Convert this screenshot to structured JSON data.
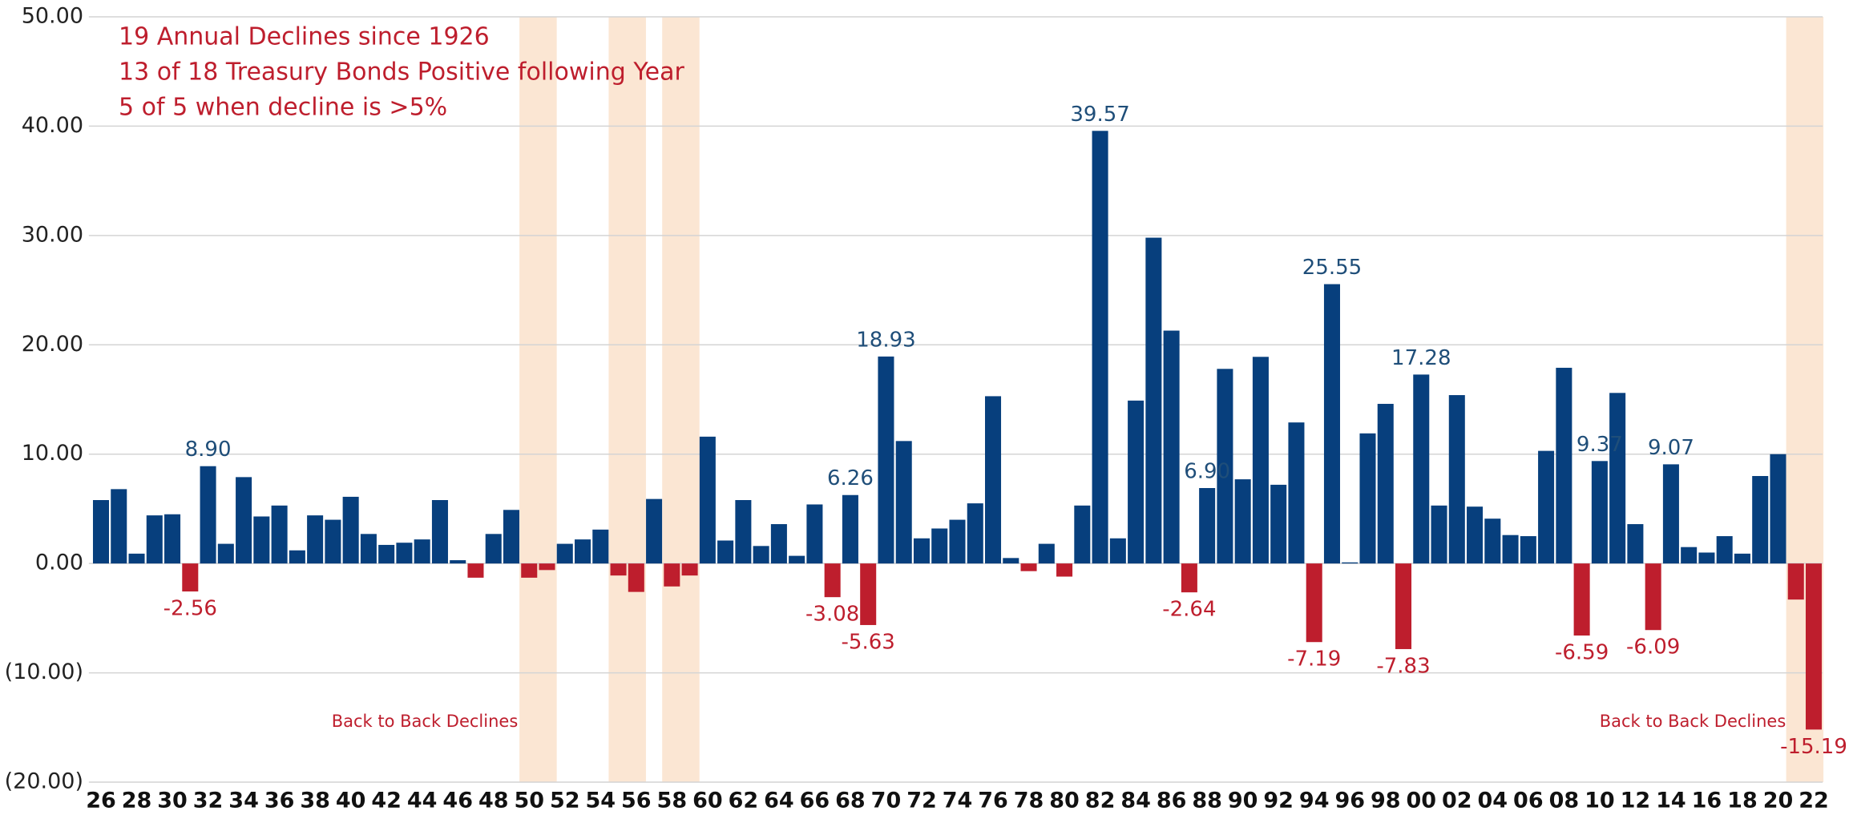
{
  "chart_data": {
    "type": "bar",
    "annotations": [
      "19 Annual Declines since 1926",
      "13 of 18 Treasury Bonds Positive following Year",
      "5 of 5 when decline is >5%",
      "Back to Back Declines",
      "Back to Back Declines"
    ],
    "categories": [
      "26",
      null,
      "28",
      null,
      "30",
      null,
      "32",
      null,
      "34",
      null,
      "36",
      null,
      "38",
      null,
      "40",
      null,
      "42",
      null,
      "44",
      null,
      "46",
      null,
      "48",
      null,
      "50",
      null,
      "52",
      null,
      "54",
      null,
      "56",
      null,
      "58",
      null,
      "60",
      null,
      "62",
      null,
      "64",
      null,
      "66",
      null,
      "68",
      null,
      "70",
      null,
      "72",
      null,
      "74",
      null,
      "76",
      null,
      "78",
      null,
      "80",
      null,
      "82",
      null,
      "84",
      null,
      "86",
      null,
      "88",
      null,
      "90",
      null,
      "92",
      null,
      "94",
      null,
      "96",
      null,
      "98",
      null,
      "00",
      null,
      "02",
      null,
      "04",
      null,
      "06",
      null,
      "08",
      null,
      "10",
      null,
      "12",
      null,
      "14",
      null,
      "16",
      null,
      "18",
      null,
      "20",
      null,
      "22"
    ],
    "values": [
      5.8,
      6.8,
      0.9,
      4.4,
      4.5,
      -2.56,
      8.9,
      1.8,
      7.9,
      4.3,
      5.3,
      1.2,
      4.4,
      4.0,
      6.1,
      2.7,
      1.7,
      1.9,
      2.2,
      5.8,
      0.3,
      -1.3,
      2.7,
      4.9,
      -1.3,
      -0.6,
      1.8,
      2.2,
      3.1,
      -1.1,
      -2.6,
      5.9,
      -2.1,
      -1.1,
      11.6,
      2.1,
      5.8,
      1.6,
      3.6,
      0.7,
      5.4,
      -3.08,
      6.26,
      -5.63,
      18.93,
      11.2,
      2.3,
      3.2,
      4.0,
      5.5,
      15.3,
      0.5,
      -0.7,
      1.8,
      -1.2,
      5.3,
      39.57,
      2.3,
      14.9,
      29.8,
      21.3,
      -2.64,
      6.9,
      17.8,
      7.7,
      18.9,
      7.2,
      12.9,
      -7.19,
      25.55,
      0.1,
      11.9,
      14.6,
      -7.83,
      17.28,
      5.3,
      15.4,
      5.2,
      4.1,
      2.6,
      2.5,
      10.3,
      17.9,
      -6.59,
      9.37,
      15.6,
      3.6,
      -6.09,
      9.07,
      1.5,
      1.0,
      2.5,
      0.9,
      8.0,
      10.0,
      -3.3,
      -15.19
    ],
    "value_labels": [
      null,
      null,
      null,
      null,
      null,
      "-2.56",
      "8.90",
      null,
      null,
      null,
      null,
      null,
      null,
      null,
      null,
      null,
      null,
      null,
      null,
      null,
      null,
      null,
      null,
      null,
      null,
      null,
      null,
      null,
      null,
      null,
      null,
      null,
      null,
      null,
      null,
      null,
      null,
      null,
      null,
      null,
      null,
      "-3.08",
      "6.26",
      "-5.63",
      "18.93",
      null,
      null,
      null,
      null,
      null,
      null,
      null,
      null,
      null,
      null,
      null,
      "39.57",
      null,
      null,
      null,
      null,
      "-2.64",
      "6.90",
      null,
      null,
      null,
      null,
      null,
      "-7.19",
      "25.55",
      null,
      null,
      null,
      "-7.83",
      "17.28",
      null,
      null,
      null,
      null,
      null,
      null,
      null,
      null,
      "-6.59",
      "9.37",
      null,
      null,
      "-6.09",
      "9.07",
      null,
      null,
      null,
      null,
      null,
      null,
      null,
      "-15.19"
    ],
    "color": "#073f7d",
    "negative_color": "#be1e2d",
    "shade_color": "#fbe6d3",
    "ylim": [
      -20,
      50
    ],
    "yticks": [
      {
        "value": -20,
        "label": "(20.00)"
      },
      {
        "value": -10,
        "label": "(10.00)"
      },
      {
        "value": 0,
        "label": "0.00"
      },
      {
        "value": 10,
        "label": "10.00"
      },
      {
        "value": 20,
        "label": "20.00"
      },
      {
        "value": 30,
        "label": "30.00"
      },
      {
        "value": 40,
        "label": "40.00"
      },
      {
        "value": 50,
        "label": "50.00"
      }
    ],
    "grid": true
  }
}
